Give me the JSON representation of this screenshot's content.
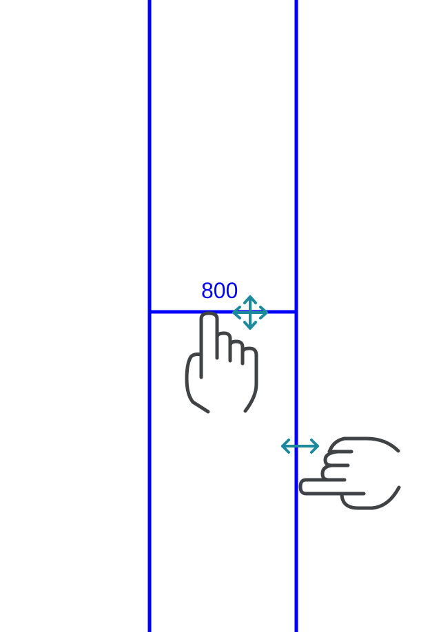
{
  "diagram": {
    "height_label": "800",
    "colors": {
      "guide_line": "#0000ff",
      "label_text": "#0000ff",
      "move_arrow": "#1a8a9c",
      "hand_outline": "#404345",
      "background": "#ffffff"
    },
    "icons": {
      "move_cursor": "move-arrows-icon",
      "vertical_drag_hand": "pointing-hand-icon",
      "horizontal_resize_cursor": "horizontal-resize-arrow-icon",
      "horizontal_drag_hand": "sideways-pointing-hand-icon"
    }
  }
}
